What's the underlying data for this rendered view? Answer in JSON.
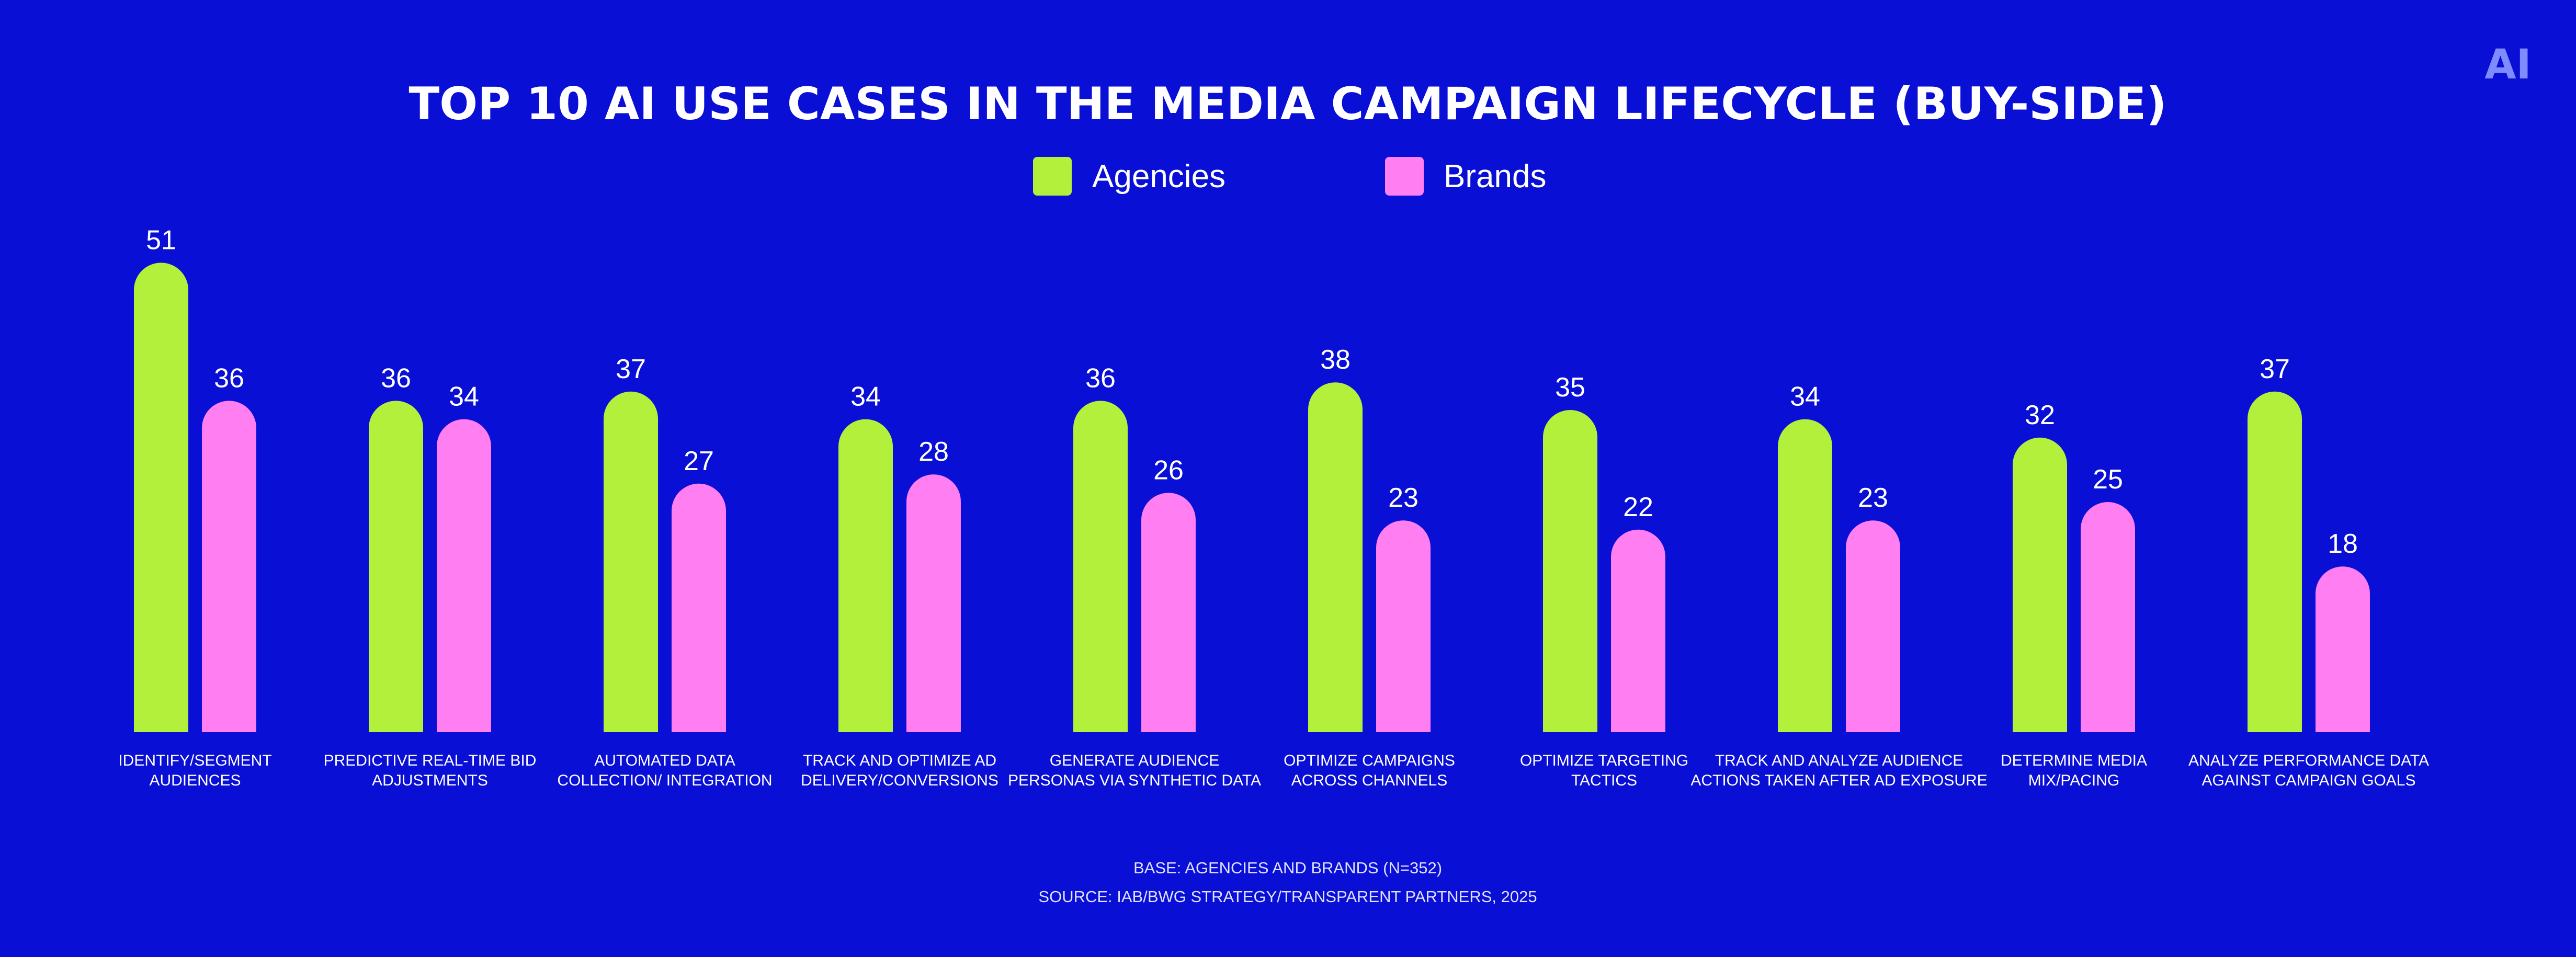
{
  "logo": {
    "text": "AI",
    "color": "#7f8cff"
  },
  "colors": {
    "background": "#0a0fd6",
    "agencies": "#b2f03c",
    "brands": "#ff7ef2",
    "text": "#ffffff"
  },
  "chart_data": {
    "type": "bar",
    "title": "TOP 10 AI USE CASES IN THE MEDIA CAMPAIGN LIFECYCLE (BUY-SIDE)",
    "legend_position": "top-center",
    "grid": false,
    "ylim": [
      0,
      55
    ],
    "xlabel": "",
    "ylabel": "",
    "categories": [
      [
        "IDENTIFY/SEGMENT",
        "AUDIENCES"
      ],
      [
        "PREDICTIVE REAL-TIME BID",
        "ADJUSTMENTS"
      ],
      [
        "AUTOMATED DATA",
        "COLLECTION/ INTEGRATION"
      ],
      [
        "TRACK AND OPTIMIZE AD",
        "DELIVERY/CONVERSIONS"
      ],
      [
        "GENERATE AUDIENCE",
        "PERSONAS VIA SYNTHETIC DATA"
      ],
      [
        "OPTIMIZE CAMPAIGNS",
        "ACROSS CHANNELS"
      ],
      [
        "OPTIMIZE TARGETING",
        "TACTICS"
      ],
      [
        "TRACK AND ANALYZE AUDIENCE",
        "ACTIONS TAKEN AFTER AD EXPOSURE"
      ],
      [
        "DETERMINE MEDIA",
        "MIX/PACING"
      ],
      [
        "ANALYZE PERFORMANCE DATA",
        "AGAINST CAMPAIGN GOALS"
      ]
    ],
    "series": [
      {
        "name": "Agencies",
        "color": "#b2f03c",
        "values": [
          51,
          36,
          37,
          34,
          36,
          38,
          35,
          34,
          32,
          37
        ]
      },
      {
        "name": "Brands",
        "color": "#ff7ef2",
        "values": [
          36,
          34,
          27,
          28,
          26,
          23,
          22,
          23,
          25,
          18
        ]
      }
    ],
    "footer": [
      "BASE: AGENCIES AND BRANDS (N=352)",
      "SOURCE: IAB/BWG STRATEGY/TRANSPARENT PARTNERS, 2025"
    ]
  }
}
